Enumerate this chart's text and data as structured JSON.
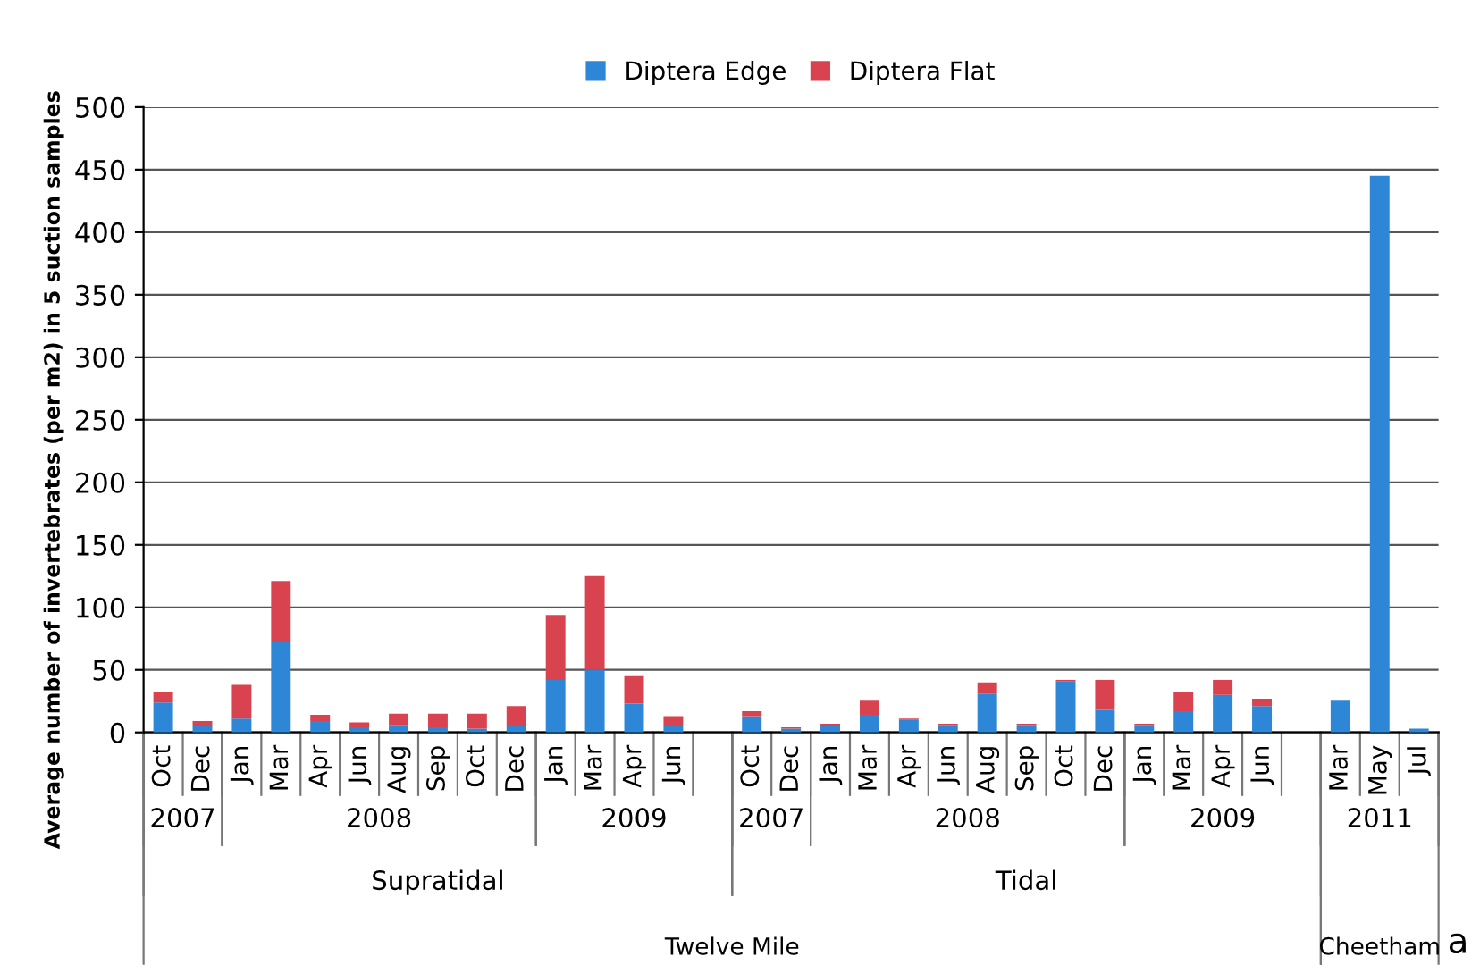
{
  "chart_data": {
    "type": "bar",
    "stacked": true,
    "ylabel": "Average number of invertebrates (per m2) in 5 suction samples",
    "categories": [
      "Oct",
      "Dec",
      "Jan",
      "Mar",
      "Apr",
      "Jun",
      "Aug",
      "Sep",
      "Oct",
      "Dec",
      "Jan",
      "Mar",
      "Apr",
      "Jun",
      null,
      "Oct",
      "Dec",
      "Jan",
      "Mar",
      "Apr",
      "Jun",
      "Aug",
      "Sep",
      "Oct",
      "Dec",
      "Jan",
      "Mar",
      "Apr",
      "Jun",
      null,
      "Mar",
      "May",
      "Jul"
    ],
    "series": [
      {
        "name": "Diptera Edge",
        "color": "#2e86d6",
        "values": [
          24,
          5,
          11,
          72,
          9,
          4,
          6,
          4,
          3,
          5,
          42,
          50,
          23,
          5,
          null,
          13,
          3,
          5,
          14,
          10,
          6,
          31,
          6,
          41,
          18,
          6,
          17,
          30,
          21,
          null,
          26,
          445,
          3
        ]
      },
      {
        "name": "Diptera Flat",
        "color": "#d9434f",
        "values": [
          8,
          4,
          27,
          49,
          5,
          4,
          9,
          11,
          12,
          16,
          52,
          75,
          22,
          8,
          null,
          4,
          1,
          2,
          12,
          1,
          1,
          9,
          1,
          1,
          24,
          1,
          15,
          12,
          6,
          null,
          0,
          0,
          0
        ]
      }
    ],
    "ylim": [
      0,
      500
    ],
    "yticks": [
      0,
      50,
      100,
      150,
      200,
      250,
      300,
      350,
      400,
      450,
      500
    ],
    "grid": "y",
    "legend": "top",
    "annotations": [
      "2007",
      "2008",
      "2009",
      "2007",
      "2008",
      "2009",
      "2011",
      "Supratidal",
      "Tidal",
      "Twelve Mile",
      "Cheetham",
      "a"
    ]
  }
}
